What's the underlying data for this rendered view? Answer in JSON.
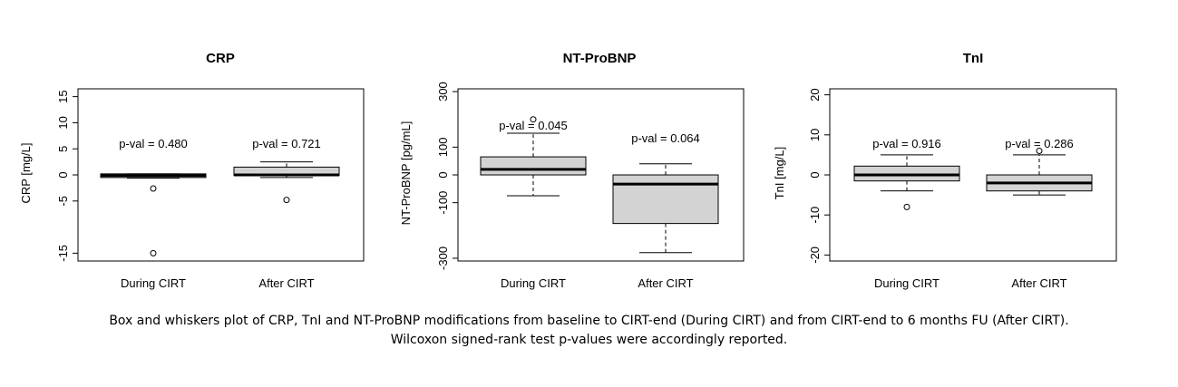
{
  "caption_lines": [
    "Box and whiskers plot of CRP, TnI and NT-ProBNP modifications from baseline to CIRT-end (During CIRT) and from CIRT-end to 6 months FU (After CIRT).",
    "Wilcoxon signed-rank test p-values were accordingly reported."
  ],
  "colors": {
    "box_fill": "#d3d3d3",
    "line": "#000000"
  },
  "chart_data": [
    {
      "type": "box",
      "title": "CRP",
      "ylabel": "CRP [mg/L]",
      "ylim": [
        -16.5,
        16.5
      ],
      "yticks": [
        -15,
        -5,
        0,
        5,
        10,
        15
      ],
      "categories": [
        "During CIRT",
        "After CIRT"
      ],
      "boxes": [
        {
          "whisker_low": -0.6,
          "q1": -0.5,
          "median": -0.1,
          "q3": 0.2,
          "whisker_high": 0.2,
          "outliers": [
            -2.6,
            -15.0
          ],
          "pval": "p-val = 0.480"
        },
        {
          "whisker_low": -0.5,
          "q1": -0.1,
          "median": 0.0,
          "q3": 1.5,
          "whisker_high": 2.5,
          "outliers": [
            -4.8
          ],
          "pval": "p-val = 0.721"
        }
      ]
    },
    {
      "type": "box",
      "title": "NT-ProBNP",
      "ylabel": "NT-ProBNP [pg/mL]",
      "ylim": [
        -310,
        310
      ],
      "yticks": [
        -300,
        -100,
        0,
        100,
        300
      ],
      "categories": [
        "During CIRT",
        "After CIRT"
      ],
      "boxes": [
        {
          "whisker_low": -75,
          "q1": 0,
          "median": 20,
          "q3": 65,
          "whisker_high": 150,
          "outliers": [
            200
          ],
          "pval": "p-val = 0.045"
        },
        {
          "whisker_low": -280,
          "q1": -175,
          "median": -33,
          "q3": 0,
          "whisker_high": 40,
          "outliers": [],
          "pval": "p-val = 0.064"
        }
      ]
    },
    {
      "type": "box",
      "title": "TnI",
      "ylabel": "TnI [mg/L]",
      "ylim": [
        -21.5,
        21.5
      ],
      "yticks": [
        -20,
        -10,
        0,
        10,
        20
      ],
      "categories": [
        "During CIRT",
        "After CIRT"
      ],
      "boxes": [
        {
          "whisker_low": -4,
          "q1": -1.5,
          "median": 0,
          "q3": 2.2,
          "whisker_high": 5,
          "outliers": [
            -8
          ],
          "pval": "p-val = 0.916"
        },
        {
          "whisker_low": -5,
          "q1": -4,
          "median": -2,
          "q3": 0,
          "whisker_high": 5,
          "outliers": [
            6
          ],
          "pval": "p-val = 0.286"
        }
      ]
    }
  ]
}
